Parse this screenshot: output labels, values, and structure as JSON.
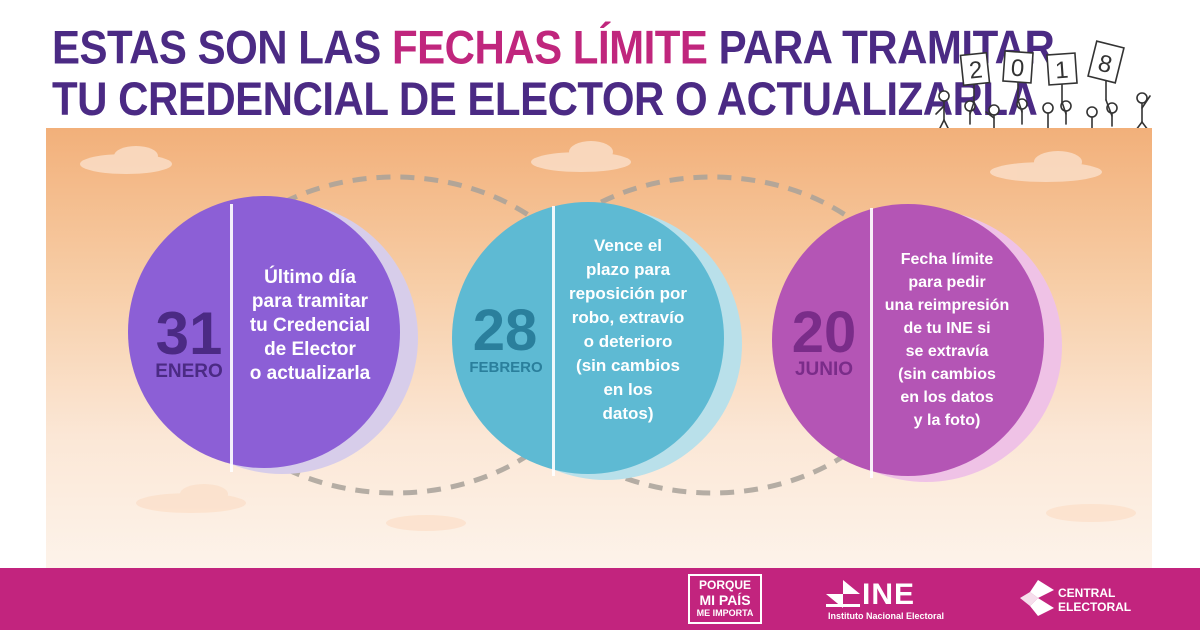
{
  "title": {
    "line1_part1": "ESTAS SON LAS ",
    "line1_highlight": "FECHAS LÍMITE",
    "line1_part2": " PARA TRAMITAR",
    "line2": "TU CREDENCIAL DE ELECTOR O ACTUALIZARLA"
  },
  "year_signs": [
    "2",
    "0",
    "1",
    "8"
  ],
  "deadlines": [
    {
      "day": "31",
      "month": "ENERO",
      "lines": [
        "Último día",
        "para tramitar",
        "tu Credencial",
        "de Elector",
        "o actualizarla"
      ],
      "color": "#8c5fd6",
      "shadow_color": "#d7cdea",
      "date_color": "#4b2a84"
    },
    {
      "day": "28",
      "month": "FEBRERO",
      "lines": [
        "Vence el",
        "plazo para",
        "reposición por",
        "robo, extravío",
        "o deterioro",
        "(sin cambios",
        "en los",
        "datos)"
      ],
      "color": "#5ebad3",
      "shadow_color": "#b9e0ea",
      "date_color": "#2a7f9c"
    },
    {
      "day": "20",
      "month": "JUNIO",
      "lines": [
        "Fecha límite",
        "para pedir",
        "una reimpresión",
        "de tu INE si",
        "se extravía",
        "(sin cambios",
        "en los datos",
        "y la foto)"
      ],
      "color": "#b455b5",
      "shadow_color": "#efc2e6",
      "date_color": "#7a2c89"
    }
  ],
  "footer": {
    "porque_lines": [
      "PORQUE",
      "MI PAÍS",
      "ME IMPORTA"
    ],
    "ine_label": "INE",
    "ine_subtitle": "Instituto Nacional Electoral",
    "central_lines": [
      "CENTRAL",
      "ELECTORAL"
    ]
  },
  "colors": {
    "title": "#4b2a84",
    "title_highlight": "#c0267d",
    "banner": "#c2247e"
  }
}
